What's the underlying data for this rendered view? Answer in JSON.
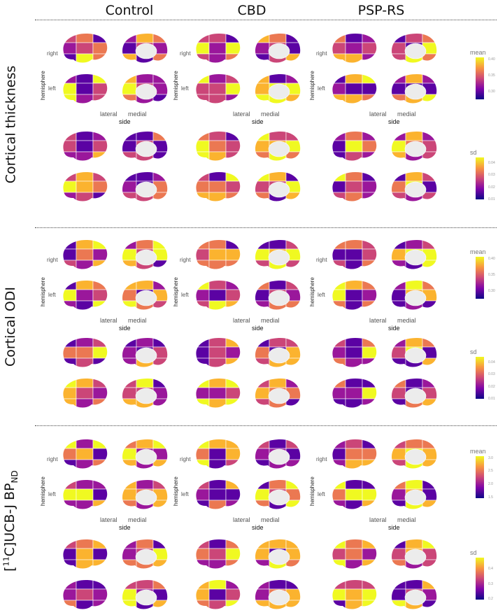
{
  "chart_data": {
    "type": "heatmap",
    "title": "",
    "description": "Brain surface maps (ggseg-style) of regional mean and sd per group, lateral/medial views, right/left hemispheres",
    "columns": [
      "Control",
      "CBD",
      "PSP-RS"
    ],
    "rows": [
      {
        "label": "Cortical thickness",
        "mean_legend": {
          "title": "mean",
          "ticks": [
            "0.40",
            "0.35",
            "0.30"
          ]
        },
        "sd_legend": {
          "title": "sd",
          "ticks": [
            "0.04",
            "0.03",
            "0.02",
            "0.01"
          ]
        }
      },
      {
        "label": "Cortical ODI",
        "mean_legend": {
          "title": "mean",
          "ticks": [
            "0.40",
            "0.35",
            "0.30"
          ]
        },
        "sd_legend": {
          "title": "sd",
          "ticks": [
            "0.04",
            "0.03",
            "0.02",
            "0.01"
          ]
        }
      },
      {
        "label": "[11C]UCB-J BPND",
        "mean_legend": {
          "title": "mean",
          "ticks": [
            "3.0",
            "2.5",
            "2.0",
            "1.5"
          ]
        },
        "sd_legend": {
          "title": "sd",
          "ticks": [
            "0.4",
            "0.3",
            "0.2"
          ]
        }
      }
    ],
    "facet_labels": {
      "hemisphere": [
        "right",
        "left"
      ],
      "side": [
        "lateral",
        "medial"
      ]
    },
    "axis_labels": {
      "y": "hemisphere",
      "x": "side"
    },
    "colormap": "plasma",
    "colormap_stops": [
      "#0d0887",
      "#7e03a8",
      "#cc4778",
      "#f89540",
      "#f0f921"
    ]
  },
  "header": {
    "columns": [
      "Control",
      "CBD",
      "PSP-RS"
    ]
  },
  "rows": [
    {
      "title_main": "Cortical thickness"
    },
    {
      "title_main": "Cortical ODI"
    },
    {
      "title_pre": "[",
      "title_sup": "11",
      "title_mid": "C]UCB-J BP",
      "title_sub": "ND"
    }
  ],
  "labels": {
    "hemisphere": "hemisphere",
    "right": "right",
    "left": "left",
    "lateral": "lateral",
    "medial": "medial",
    "side": "side"
  },
  "legends": {
    "r0_mean": {
      "title": "mean",
      "t0": "0.40",
      "t1": "0.35",
      "t2": "0.30"
    },
    "r0_sd": {
      "title": "sd",
      "t0": "0.04",
      "t1": "0.03",
      "t2": "0.02",
      "t3": "0.01"
    },
    "r1_mean": {
      "title": "mean",
      "t0": "0.40",
      "t1": "0.35",
      "t2": "0.30"
    },
    "r1_sd": {
      "title": "sd",
      "t0": "0.04",
      "t1": "0.03",
      "t2": "0.02",
      "t3": "0.01"
    },
    "r2_mean": {
      "title": "mean",
      "t0": "3.0",
      "t1": "2.5",
      "t2": "2.0",
      "t3": "1.5"
    },
    "r2_sd": {
      "title": "sd",
      "t0": "0.4",
      "t1": "0.3",
      "t2": "0.2"
    }
  }
}
